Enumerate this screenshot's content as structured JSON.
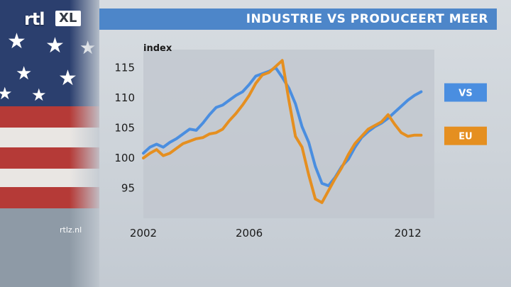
{
  "branding": {
    "logo_rtl": "rtl",
    "logo_xl": "XL",
    "site": "rtlz.nl"
  },
  "header": {
    "title": "INDUSTRIE VS PRODUCEERT MEER"
  },
  "colors": {
    "vs": "#4a8ee0",
    "eu": "#e58f20",
    "title_bar": "#4d86c9"
  },
  "chart_data": {
    "type": "line",
    "ylabel": "index",
    "ylim": [
      90,
      118
    ],
    "xlim": [
      2002.0,
      2013.0
    ],
    "yticks": [
      95,
      100,
      105,
      110,
      115
    ],
    "xticks": [
      2002,
      2006,
      2012
    ],
    "series": [
      {
        "name": "VS",
        "color": "#4a8ee0",
        "x": [
          2002.0,
          2002.25,
          2002.5,
          2002.75,
          2003.0,
          2003.25,
          2003.5,
          2003.75,
          2004.0,
          2004.25,
          2004.5,
          2004.75,
          2005.0,
          2005.25,
          2005.5,
          2005.75,
          2006.0,
          2006.25,
          2006.5,
          2006.75,
          2007.0,
          2007.25,
          2007.5,
          2007.75,
          2008.0,
          2008.25,
          2008.5,
          2008.75,
          2009.0,
          2009.25,
          2009.5,
          2009.75,
          2010.0,
          2010.25,
          2010.5,
          2010.75,
          2011.0,
          2011.25,
          2011.5,
          2011.75,
          2012.0,
          2012.25,
          2012.5
        ],
        "values": [
          100.8,
          101.8,
          102.3,
          101.8,
          102.6,
          103.2,
          104.0,
          104.8,
          104.6,
          105.8,
          107.2,
          108.4,
          108.8,
          109.6,
          110.4,
          111.0,
          112.2,
          113.6,
          114.0,
          114.4,
          115.0,
          113.4,
          111.6,
          109.0,
          105.2,
          102.6,
          98.6,
          95.8,
          95.4,
          96.8,
          98.6,
          99.8,
          101.8,
          103.4,
          104.4,
          105.2,
          105.8,
          106.6,
          107.6,
          108.6,
          109.6,
          110.4,
          111.0
        ]
      },
      {
        "name": "EU",
        "color": "#e58f20",
        "x": [
          2002.0,
          2002.25,
          2002.5,
          2002.75,
          2003.0,
          2003.25,
          2003.5,
          2003.75,
          2004.0,
          2004.25,
          2004.5,
          2004.75,
          2005.0,
          2005.25,
          2005.5,
          2005.75,
          2006.0,
          2006.25,
          2006.5,
          2006.75,
          2007.0,
          2007.25,
          2007.5,
          2007.75,
          2008.0,
          2008.25,
          2008.5,
          2008.75,
          2009.0,
          2009.25,
          2009.5,
          2009.75,
          2010.0,
          2010.25,
          2010.5,
          2010.75,
          2011.0,
          2011.25,
          2011.5,
          2011.75,
          2012.0,
          2012.25,
          2012.5
        ],
        "values": [
          100.0,
          100.8,
          101.4,
          100.4,
          100.8,
          101.6,
          102.4,
          102.8,
          103.2,
          103.4,
          104.0,
          104.2,
          104.8,
          106.2,
          107.4,
          108.8,
          110.4,
          112.4,
          113.8,
          114.2,
          115.2,
          116.2,
          109.6,
          103.6,
          101.8,
          97.2,
          93.2,
          92.6,
          94.6,
          96.6,
          98.4,
          100.6,
          102.4,
          103.6,
          104.8,
          105.4,
          106.0,
          107.2,
          105.6,
          104.2,
          103.6,
          103.8,
          103.8
        ]
      }
    ]
  }
}
